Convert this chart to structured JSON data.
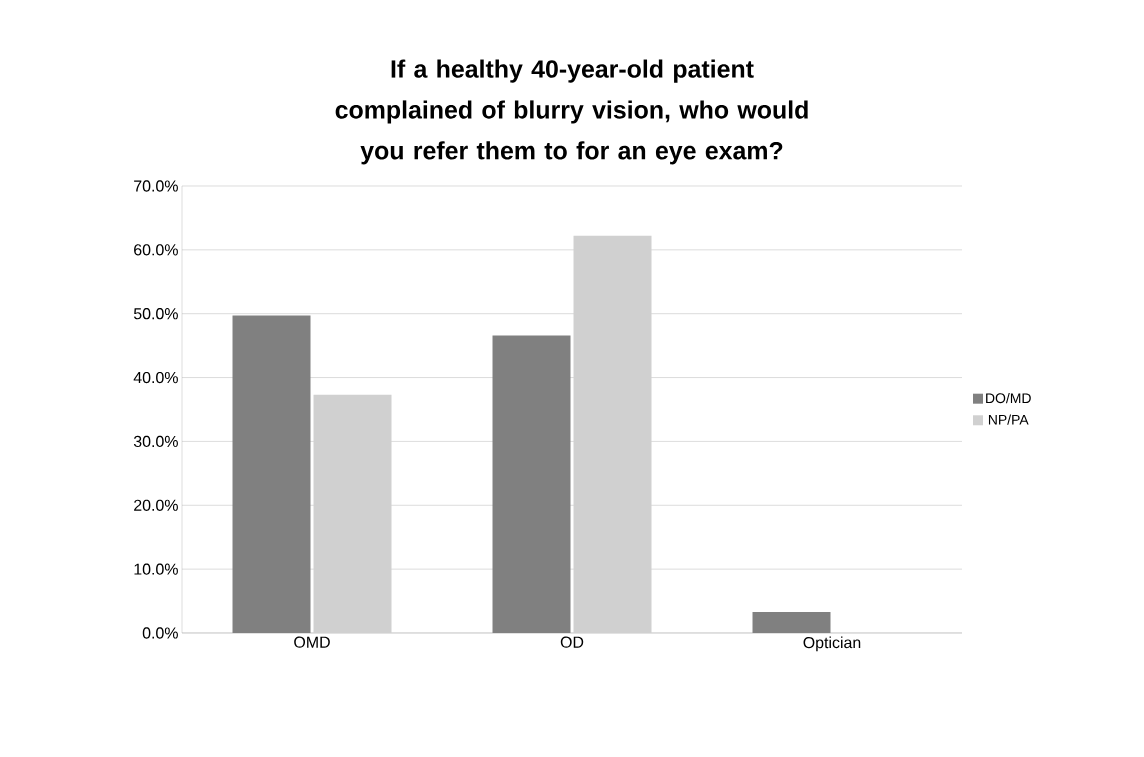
{
  "chart_data": {
    "type": "bar",
    "title": "If a healthy 40-year-old patient complained of blurry vision, who would you refer them to for an eye exam?",
    "categories": [
      "OMD",
      "OD",
      "Optician"
    ],
    "series": [
      {
        "name": "DO/MD",
        "color": "#808080",
        "values": [
          49.7,
          46.6,
          3.3
        ]
      },
      {
        "name": "NP/PA",
        "color": "#d0d0d0",
        "values": [
          37.3,
          62.2,
          0
        ]
      }
    ],
    "ylim": [
      0,
      70
    ],
    "yticks": [
      {
        "value": 0,
        "label": "0.0%"
      },
      {
        "value": 10,
        "label": "10.0%"
      },
      {
        "value": 20,
        "label": "20.0%"
      },
      {
        "value": 30,
        "label": "30.0%"
      },
      {
        "value": 40,
        "label": "40.0%"
      },
      {
        "value": 50,
        "label": "50.0%"
      },
      {
        "value": 60,
        "label": "60.0%"
      },
      {
        "value": 70,
        "label": "70.0%"
      }
    ],
    "grid": "y",
    "legend": "right"
  }
}
